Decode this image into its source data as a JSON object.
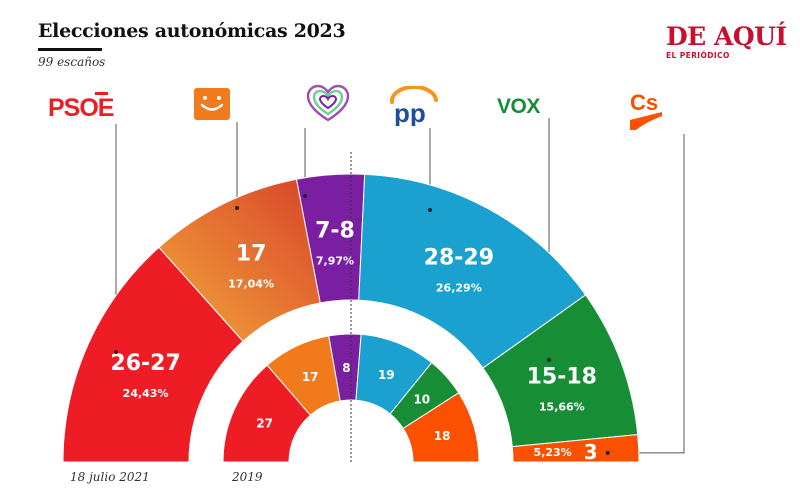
{
  "header": {
    "title": "Elecciones autonómicas 2023",
    "subtitle": "99 escaños"
  },
  "brand": {
    "name": "DE AQUÍ",
    "sub": "EL PERIÓDICO"
  },
  "logos": {
    "psoe": "PSOE",
    "pp": "pp",
    "vox": "VOX",
    "cs": "Cs"
  },
  "colors": {
    "psoe": "#ee1c25",
    "upl": "#f07a1c",
    "podemos": "#7b1fa2",
    "pp": "#1ba1d0",
    "vox": "#178e36",
    "cs": "#fa5000"
  },
  "captions": {
    "outer": "18 julio 2021",
    "inner": "2019"
  },
  "chart_data": {
    "type": "pie",
    "semicircle": true,
    "total": 99,
    "outer_ring": {
      "name": "18 julio 2021",
      "parties": [
        {
          "party": "PSOE",
          "seats": "26-27",
          "pct": "24,43%",
          "value": 26.5,
          "color": "#ee1c25"
        },
        {
          "party": "UPL",
          "seats": "17",
          "pct": "17,04%",
          "value": 17,
          "color": "#f07a1c"
        },
        {
          "party": "Podemos",
          "seats": "7-8",
          "pct": "7,97%",
          "value": 7.5,
          "color": "#7b1fa2"
        },
        {
          "party": "PP",
          "seats": "28-29",
          "pct": "26,29%",
          "value": 28.5,
          "color": "#1ba1d0"
        },
        {
          "party": "VOX",
          "seats": "15-18",
          "pct": "15,66%",
          "value": 16.5,
          "color": "#178e36"
        },
        {
          "party": "Cs",
          "seats": "3",
          "pct": "5,23%",
          "value": 3,
          "color": "#fa5000"
        }
      ]
    },
    "inner_ring": {
      "name": "2019",
      "parties": [
        {
          "party": "PSOE",
          "seats": "27",
          "value": 27,
          "color": "#ee1c25"
        },
        {
          "party": "UPL",
          "seats": "17",
          "value": 17,
          "color": "#f07a1c"
        },
        {
          "party": "Podemos",
          "seats": "8",
          "value": 8,
          "color": "#7b1fa2"
        },
        {
          "party": "PP",
          "seats": "19",
          "value": 19,
          "color": "#1ba1d0"
        },
        {
          "party": "VOX",
          "seats": "10",
          "value": 10,
          "color": "#178e36"
        },
        {
          "party": "Cs",
          "seats": "18",
          "value": 18,
          "color": "#fa5000"
        }
      ]
    }
  }
}
